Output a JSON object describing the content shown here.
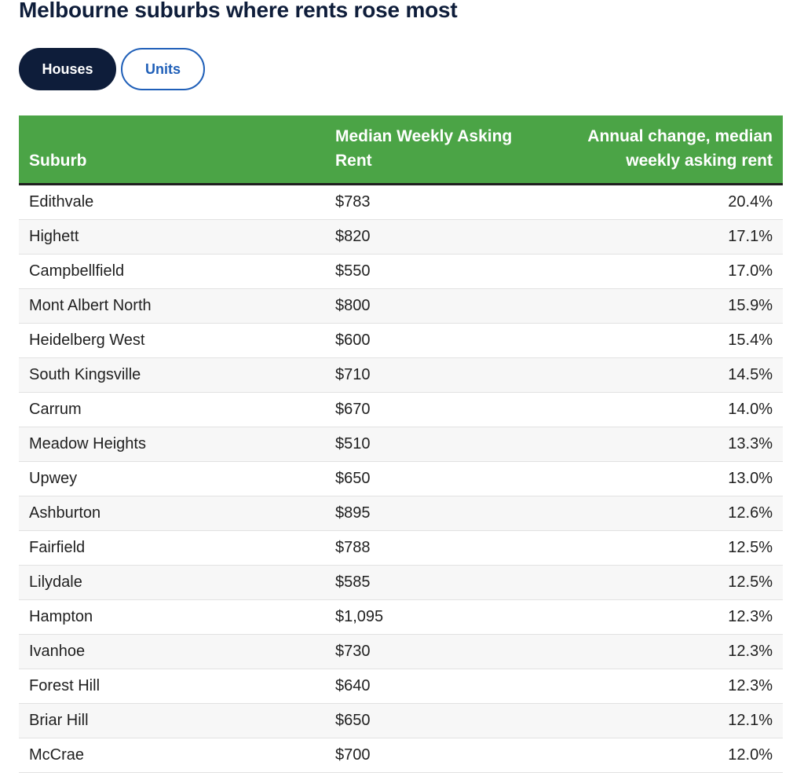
{
  "title": "Melbourne suburbs where rents rose most",
  "toggle": {
    "houses_label": "Houses",
    "units_label": "Units",
    "selected": "Houses"
  },
  "colors": {
    "title": "#0e1d3a",
    "header_green": "#4ba446",
    "active_toggle": "#0e1d3a",
    "inactive_toggle_accent": "#1f5fb8"
  },
  "table": {
    "headers": {
      "suburb": "Suburb",
      "rent": "Median Weekly Asking Rent",
      "change": "Annual change, median weekly asking rent"
    },
    "rows": [
      {
        "suburb": "Edithvale",
        "rent": "$783",
        "change": "20.4%"
      },
      {
        "suburb": "Highett",
        "rent": "$820",
        "change": "17.1%"
      },
      {
        "suburb": "Campbellfield",
        "rent": "$550",
        "change": "17.0%"
      },
      {
        "suburb": "Mont Albert North",
        "rent": "$800",
        "change": "15.9%"
      },
      {
        "suburb": "Heidelberg West",
        "rent": "$600",
        "change": "15.4%"
      },
      {
        "suburb": "South Kingsville",
        "rent": "$710",
        "change": "14.5%"
      },
      {
        "suburb": "Carrum",
        "rent": "$670",
        "change": "14.0%"
      },
      {
        "suburb": "Meadow Heights",
        "rent": "$510",
        "change": "13.3%"
      },
      {
        "suburb": "Upwey",
        "rent": "$650",
        "change": "13.0%"
      },
      {
        "suburb": "Ashburton",
        "rent": "$895",
        "change": "12.6%"
      },
      {
        "suburb": "Fairfield",
        "rent": "$788",
        "change": "12.5%"
      },
      {
        "suburb": "Lilydale",
        "rent": "$585",
        "change": "12.5%"
      },
      {
        "suburb": "Hampton",
        "rent": "$1,095",
        "change": "12.3%"
      },
      {
        "suburb": "Ivanhoe",
        "rent": "$730",
        "change": "12.3%"
      },
      {
        "suburb": "Forest Hill",
        "rent": "$640",
        "change": "12.3%"
      },
      {
        "suburb": "Briar Hill",
        "rent": "$650",
        "change": "12.1%"
      },
      {
        "suburb": "McCrae",
        "rent": "$700",
        "change": "12.0%"
      }
    ]
  }
}
